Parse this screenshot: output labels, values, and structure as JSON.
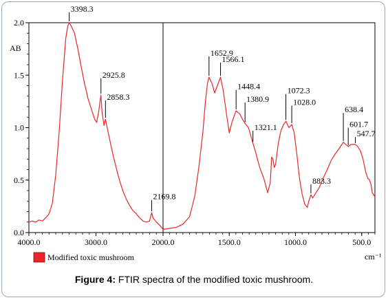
{
  "chart_data": {
    "type": "line",
    "ylabel": "AB",
    "xunit": "cm⁻¹",
    "xlim": [
      4000,
      400
    ],
    "ylim": [
      0,
      2.0
    ],
    "xticks": [
      4000,
      3000,
      2000,
      1500,
      1000,
      500
    ],
    "xtick_labels": [
      "4000.0",
      "3000.0",
      "2000.0",
      "1500.0",
      "1000.0",
      "500.0"
    ],
    "yticks": [
      0,
      0.5,
      1.0,
      1.5,
      2.0
    ],
    "ytick_labels": [
      "0.0",
      "0.5",
      "1.0",
      "1.5",
      "2.0"
    ],
    "split_at": 2000,
    "series": [
      {
        "name": "Modified toxic mushroom",
        "color": "#e8262a",
        "points": [
          [
            4000,
            0.1
          ],
          [
            3950,
            0.11
          ],
          [
            3900,
            0.1
          ],
          [
            3850,
            0.12
          ],
          [
            3800,
            0.11
          ],
          [
            3750,
            0.14
          ],
          [
            3700,
            0.18
          ],
          [
            3650,
            0.28
          ],
          [
            3600,
            0.55
          ],
          [
            3550,
            0.95
          ],
          [
            3500,
            1.45
          ],
          [
            3450,
            1.85
          ],
          [
            3420,
            1.97
          ],
          [
            3398.3,
            2.0
          ],
          [
            3370,
            1.97
          ],
          [
            3320,
            1.9
          ],
          [
            3270,
            1.75
          ],
          [
            3220,
            1.58
          ],
          [
            3170,
            1.42
          ],
          [
            3120,
            1.28
          ],
          [
            3070,
            1.18
          ],
          [
            3020,
            1.08
          ],
          [
            2990,
            1.05
          ],
          [
            2960,
            1.15
          ],
          [
            2935,
            1.27
          ],
          [
            2925.8,
            1.31
          ],
          [
            2910,
            1.15
          ],
          [
            2880,
            1.02
          ],
          [
            2858.3,
            1.08
          ],
          [
            2840,
            1.02
          ],
          [
            2800,
            0.9
          ],
          [
            2750,
            0.75
          ],
          [
            2700,
            0.62
          ],
          [
            2650,
            0.5
          ],
          [
            2600,
            0.4
          ],
          [
            2550,
            0.32
          ],
          [
            2500,
            0.26
          ],
          [
            2450,
            0.21
          ],
          [
            2400,
            0.18
          ],
          [
            2350,
            0.14
          ],
          [
            2300,
            0.11
          ],
          [
            2250,
            0.1
          ],
          [
            2200,
            0.11
          ],
          [
            2169.8,
            0.19
          ],
          [
            2150,
            0.14
          ],
          [
            2100,
            0.1
          ],
          [
            2050,
            0.07
          ],
          [
            2000,
            0.03
          ],
          [
            1950,
            0.04
          ],
          [
            1900,
            0.05
          ],
          [
            1850,
            0.08
          ],
          [
            1800,
            0.15
          ],
          [
            1760,
            0.35
          ],
          [
            1730,
            0.62
          ],
          [
            1700,
            0.95
          ],
          [
            1680,
            1.25
          ],
          [
            1665,
            1.42
          ],
          [
            1652.9,
            1.48
          ],
          [
            1630,
            1.42
          ],
          [
            1610,
            1.33
          ],
          [
            1590,
            1.4
          ],
          [
            1566.1,
            1.48
          ],
          [
            1545,
            1.35
          ],
          [
            1520,
            1.12
          ],
          [
            1500,
            0.95
          ],
          [
            1480,
            1.05
          ],
          [
            1460,
            1.12
          ],
          [
            1448.4,
            1.16
          ],
          [
            1420,
            1.13
          ],
          [
            1400,
            1.08
          ],
          [
            1380.9,
            1.04
          ],
          [
            1355,
            1.0
          ],
          [
            1330,
            0.89
          ],
          [
            1321.1,
            0.85
          ],
          [
            1300,
            0.76
          ],
          [
            1270,
            0.62
          ],
          [
            1240,
            0.52
          ],
          [
            1210,
            0.38
          ],
          [
            1190,
            0.48
          ],
          [
            1180,
            0.72
          ],
          [
            1170,
            0.7
          ],
          [
            1160,
            0.62
          ],
          [
            1150,
            0.65
          ],
          [
            1130,
            0.85
          ],
          [
            1110,
            0.97
          ],
          [
            1090,
            1.03
          ],
          [
            1072.3,
            1.06
          ],
          [
            1050,
            1.0
          ],
          [
            1028.0,
            1.03
          ],
          [
            1010,
            0.95
          ],
          [
            990,
            0.75
          ],
          [
            970,
            0.52
          ],
          [
            950,
            0.37
          ],
          [
            930,
            0.27
          ],
          [
            910,
            0.24
          ],
          [
            900,
            0.3
          ],
          [
            883.3,
            0.36
          ],
          [
            870,
            0.33
          ],
          [
            850,
            0.37
          ],
          [
            820,
            0.43
          ],
          [
            790,
            0.52
          ],
          [
            760,
            0.6
          ],
          [
            730,
            0.69
          ],
          [
            700,
            0.75
          ],
          [
            670,
            0.8
          ],
          [
            650,
            0.84
          ],
          [
            638.4,
            0.86
          ],
          [
            620,
            0.84
          ],
          [
            601.7,
            0.82
          ],
          [
            580,
            0.84
          ],
          [
            547.7,
            0.84
          ],
          [
            530,
            0.82
          ],
          [
            510,
            0.78
          ],
          [
            490,
            0.7
          ],
          [
            470,
            0.58
          ],
          [
            455,
            0.52
          ],
          [
            440,
            0.5
          ],
          [
            430,
            0.46
          ],
          [
            420,
            0.38
          ],
          [
            400,
            0.34
          ]
        ]
      }
    ],
    "annotations": [
      {
        "x": 3398.3,
        "y": 2.0,
        "text": "3398.3",
        "side": "right",
        "dy": 0.1
      },
      {
        "x": 2925.8,
        "y": 1.31,
        "text": "2925.8",
        "side": "right",
        "dy": 0.16
      },
      {
        "x": 2858.3,
        "y": 1.08,
        "text": "2858.3",
        "side": "right",
        "dy": 0.18
      },
      {
        "x": 2169.8,
        "y": 0.19,
        "text": "2169.8",
        "side": "right",
        "dy": 0.12
      },
      {
        "x": 1652.9,
        "y": 1.48,
        "text": "1652.9",
        "side": "right",
        "dy": 0.2
      },
      {
        "x": 1566.1,
        "y": 1.48,
        "text": "1566.1",
        "side": "right",
        "dy": 0.14
      },
      {
        "x": 1448.4,
        "y": 1.16,
        "text": "1448.4",
        "side": "right",
        "dy": 0.2
      },
      {
        "x": 1380.9,
        "y": 1.04,
        "text": "1380.9",
        "side": "right",
        "dy": 0.2
      },
      {
        "x": 1321.1,
        "y": 0.85,
        "text": "1321.1",
        "side": "right",
        "dy": 0.12
      },
      {
        "x": 1072.3,
        "y": 1.06,
        "text": "1072.3",
        "side": "right",
        "dy": 0.26
      },
      {
        "x": 1028.0,
        "y": 1.03,
        "text": "1028.0",
        "side": "right",
        "dy": 0.18
      },
      {
        "x": 883.3,
        "y": 0.36,
        "text": "883.3",
        "side": "right",
        "dy": 0.1
      },
      {
        "x": 638.4,
        "y": 0.86,
        "text": "638.4",
        "side": "right",
        "dy": 0.28
      },
      {
        "x": 601.7,
        "y": 0.82,
        "text": "601.7",
        "side": "right",
        "dy": 0.18
      },
      {
        "x": 547.7,
        "y": 0.84,
        "text": "547.7",
        "side": "right",
        "dy": 0.07
      }
    ],
    "grid": false,
    "legend": "bottom-left"
  },
  "legend": {
    "label": "Modified toxic mushroom",
    "color": "#e8262a"
  },
  "caption": {
    "bold": "Figure 4:",
    "text": " FTIR spectra of the modified toxic mushroom."
  }
}
